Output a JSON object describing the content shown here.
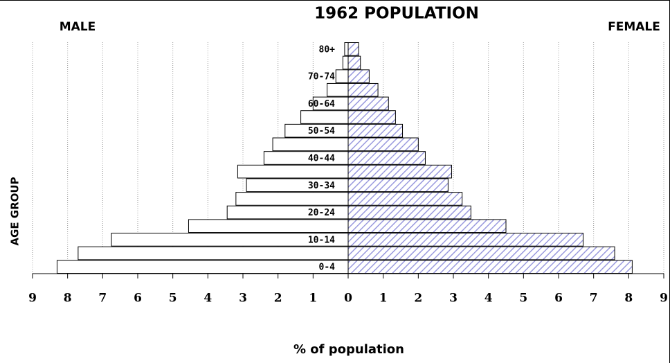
{
  "chart_data": {
    "type": "pyramid",
    "title": "1962 POPULATION",
    "xlabel": "% of population",
    "ylabel": "AGE GROUP",
    "categories": [
      "0-4",
      null,
      "10-14",
      null,
      "20-24",
      null,
      "30-34",
      null,
      "40-44",
      null,
      "50-54",
      null,
      "60-64",
      null,
      "70-74",
      null,
      "80+"
    ],
    "series": [
      {
        "name": "MALE",
        "color": "#ffffff",
        "side": "left",
        "values": [
          8.3,
          7.7,
          6.75,
          4.55,
          3.45,
          3.2,
          2.9,
          3.15,
          2.4,
          2.15,
          1.8,
          1.35,
          1.0,
          0.6,
          0.35,
          0.15,
          0.1
        ]
      },
      {
        "name": "FEMALE",
        "color": "#9a9ade",
        "side": "right",
        "hatch": true,
        "values": [
          8.1,
          7.6,
          6.7,
          4.5,
          3.5,
          3.25,
          2.85,
          2.95,
          2.2,
          2.0,
          1.55,
          1.35,
          1.15,
          0.85,
          0.6,
          0.35,
          0.3
        ]
      }
    ],
    "xlim": [
      0,
      9
    ],
    "xticks": [
      0,
      1,
      2,
      3,
      4,
      5,
      6,
      7,
      8,
      9
    ],
    "grid": true
  }
}
